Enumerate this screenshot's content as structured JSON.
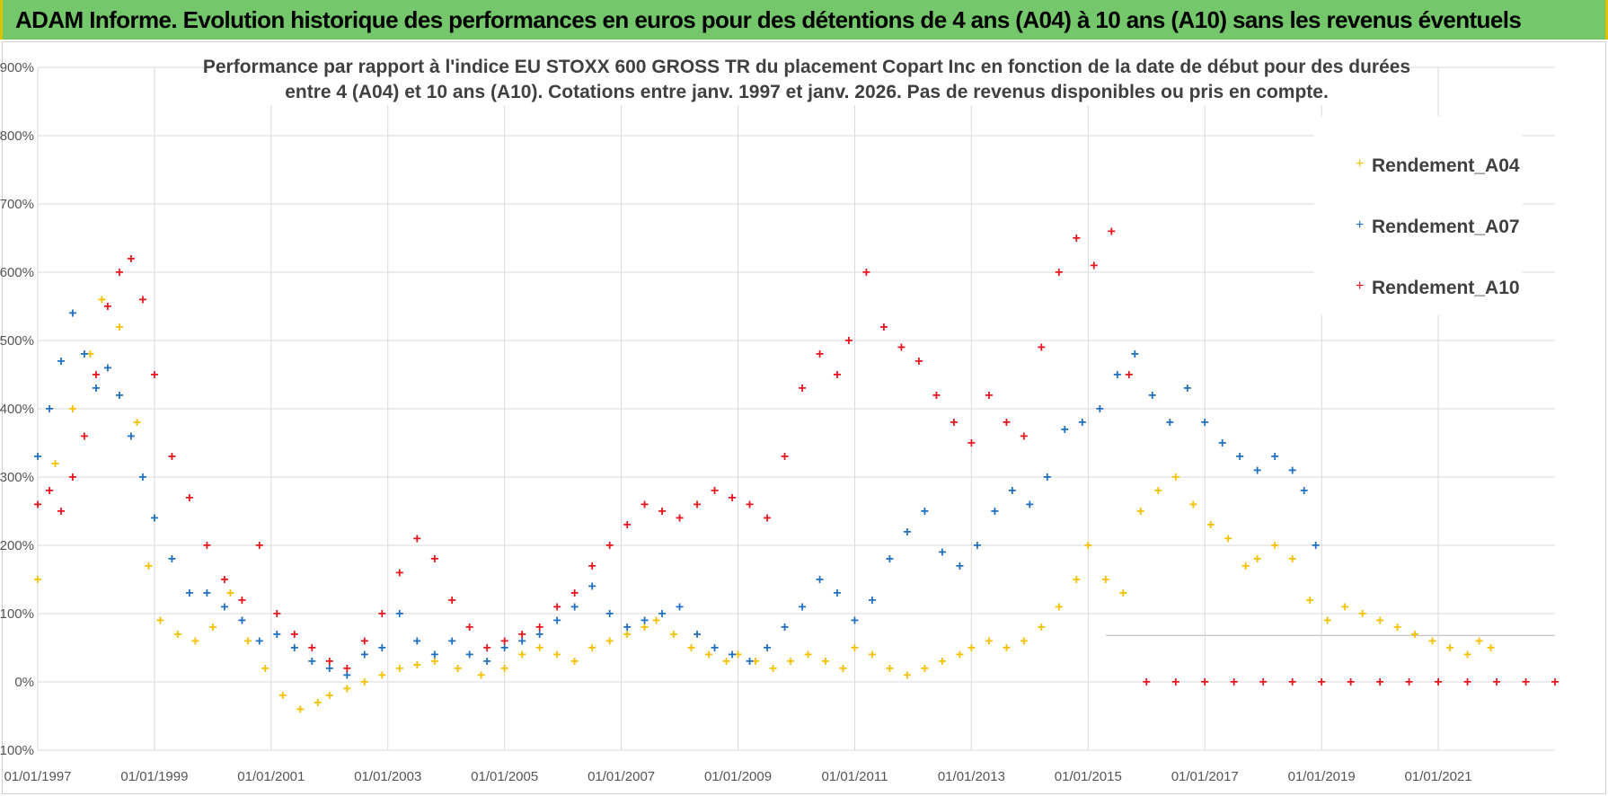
{
  "header": {
    "title": "ADAM Informe. Evolution historique des performances en euros pour des détentions de 4 ans (A04) à 10 ans (A10) sans les revenus éventuels"
  },
  "colors": {
    "banner": "#74c76a",
    "series_A04": "#f5c000",
    "series_A07": "#1f6fc0",
    "series_A10": "#e8141c"
  },
  "chart_data": {
    "type": "scatter",
    "title_lines": [
      "Performance par rapport à l'indice EU STOXX 600 GROSS TR  du placement Copart Inc en fonction de la date de début pour des durées",
      "entre 4 (A04) et 10 ans (A10).  Cotations entre janv. 1997 et janv. 2026. Pas de revenus disponibles ou pris en compte."
    ],
    "xlabel": "",
    "ylabel": "",
    "x_range": [
      1997.0,
      2023.0
    ],
    "ylim": [
      -100,
      900
    ],
    "y_ticks": [
      "- 100%",
      "0%",
      "100%",
      "200%",
      "300%",
      "400%",
      "500%",
      "600%",
      "700%",
      "800%",
      "900%"
    ],
    "x_ticks": [
      "01/01/1997",
      "01/01/1999",
      "01/01/2001",
      "01/01/2003",
      "01/01/2005",
      "01/01/2007",
      "01/01/2009",
      "01/01/2011",
      "01/01/2013",
      "01/01/2015",
      "01/01/2017",
      "01/01/2019",
      "01/01/2021"
    ],
    "legend_position": "top-right",
    "series": [
      {
        "name": "Rendement_A04",
        "color": "#f5c000",
        "x": [
          1997.0,
          1997.3,
          1997.6,
          1997.9,
          1998.1,
          1998.4,
          1998.7,
          1998.9,
          1999.1,
          1999.4,
          1999.7,
          2000.0,
          2000.3,
          2000.6,
          2000.9,
          2001.2,
          2001.5,
          2001.8,
          2002.0,
          2002.3,
          2002.6,
          2002.9,
          2003.2,
          2003.5,
          2003.8,
          2004.2,
          2004.6,
          2005.0,
          2005.3,
          2005.6,
          2005.9,
          2006.2,
          2006.5,
          2006.8,
          2007.1,
          2007.4,
          2007.6,
          2007.9,
          2008.2,
          2008.5,
          2008.8,
          2009.0,
          2009.3,
          2009.6,
          2009.9,
          2010.2,
          2010.5,
          2010.8,
          2011.0,
          2011.3,
          2011.6,
          2011.9,
          2012.2,
          2012.5,
          2012.8,
          2013.0,
          2013.3,
          2013.6,
          2013.9,
          2014.2,
          2014.5,
          2014.8,
          2015.0,
          2015.3,
          2015.6,
          2015.9,
          2016.2,
          2016.5,
          2016.8,
          2017.1,
          2017.4,
          2017.7,
          2017.9,
          2018.2,
          2018.5,
          2018.8,
          2019.1,
          2019.4,
          2019.7,
          2020.0,
          2020.3,
          2020.6,
          2020.9,
          2021.2,
          2021.5,
          2021.7,
          2021.9
        ],
        "values": [
          150,
          320,
          400,
          480,
          560,
          520,
          380,
          170,
          90,
          70,
          60,
          80,
          130,
          60,
          20,
          -20,
          -40,
          -30,
          -20,
          -10,
          0,
          10,
          20,
          25,
          30,
          20,
          10,
          20,
          40,
          50,
          40,
          30,
          50,
          60,
          70,
          80,
          90,
          70,
          50,
          40,
          30,
          40,
          30,
          20,
          30,
          40,
          30,
          20,
          50,
          40,
          20,
          10,
          20,
          30,
          40,
          50,
          60,
          50,
          60,
          80,
          110,
          150,
          200,
          150,
          130,
          250,
          280,
          300,
          260,
          230,
          210,
          170,
          180,
          200,
          180,
          120,
          90,
          110,
          100,
          90,
          80,
          70,
          60,
          50,
          40,
          60,
          50
        ]
      },
      {
        "name": "Rendement_A07",
        "color": "#1f6fc0",
        "x": [
          1997.0,
          1997.2,
          1997.4,
          1997.6,
          1997.8,
          1998.0,
          1998.2,
          1998.4,
          1998.6,
          1998.8,
          1999.0,
          1999.3,
          1999.6,
          1999.9,
          2000.2,
          2000.5,
          2000.8,
          2001.1,
          2001.4,
          2001.7,
          2002.0,
          2002.3,
          2002.6,
          2002.9,
          2003.2,
          2003.5,
          2003.8,
          2004.1,
          2004.4,
          2004.7,
          2005.0,
          2005.3,
          2005.6,
          2005.9,
          2006.2,
          2006.5,
          2006.8,
          2007.1,
          2007.4,
          2007.7,
          2008.0,
          2008.3,
          2008.6,
          2008.9,
          2009.2,
          2009.5,
          2009.8,
          2010.1,
          2010.4,
          2010.7,
          2011.0,
          2011.3,
          2011.6,
          2011.9,
          2012.2,
          2012.5,
          2012.8,
          2013.1,
          2013.4,
          2013.7,
          2014.0,
          2014.3,
          2014.6,
          2014.9,
          2015.2,
          2015.5,
          2015.8,
          2016.1,
          2016.4,
          2016.7,
          2017.0,
          2017.3,
          2017.6,
          2017.9,
          2018.2,
          2018.5,
          2018.7,
          2018.9
        ],
        "values": [
          330,
          400,
          470,
          540,
          480,
          430,
          460,
          420,
          360,
          300,
          240,
          180,
          130,
          130,
          110,
          90,
          60,
          70,
          50,
          30,
          20,
          10,
          40,
          50,
          100,
          60,
          40,
          60,
          40,
          30,
          50,
          60,
          70,
          90,
          110,
          140,
          100,
          80,
          90,
          100,
          110,
          70,
          50,
          40,
          30,
          50,
          80,
          110,
          150,
          130,
          90,
          120,
          180,
          220,
          250,
          190,
          170,
          200,
          250,
          280,
          260,
          300,
          370,
          380,
          400,
          450,
          480,
          420,
          380,
          430,
          380,
          350,
          330,
          310,
          330,
          310,
          280,
          200
        ]
      },
      {
        "name": "Rendement_A10",
        "color": "#e8141c",
        "x": [
          1997.0,
          1997.2,
          1997.4,
          1997.6,
          1997.8,
          1998.0,
          1998.2,
          1998.4,
          1998.6,
          1998.8,
          1999.0,
          1999.3,
          1999.6,
          1999.9,
          2000.2,
          2000.5,
          2000.8,
          2001.1,
          2001.4,
          2001.7,
          2002.0,
          2002.3,
          2002.6,
          2002.9,
          2003.2,
          2003.5,
          2003.8,
          2004.1,
          2004.4,
          2004.7,
          2005.0,
          2005.3,
          2005.6,
          2005.9,
          2006.2,
          2006.5,
          2006.8,
          2007.1,
          2007.4,
          2007.7,
          2008.0,
          2008.3,
          2008.6,
          2008.9,
          2009.2,
          2009.5,
          2009.8,
          2010.1,
          2010.4,
          2010.7,
          2010.9,
          2011.2,
          2011.5,
          2011.8,
          2012.1,
          2012.4,
          2012.7,
          2013.0,
          2013.3,
          2013.6,
          2013.9,
          2014.2,
          2014.5,
          2014.8,
          2015.1,
          2015.4,
          2015.7
        ],
        "values": [
          260,
          280,
          250,
          300,
          360,
          450,
          550,
          600,
          620,
          560,
          450,
          330,
          270,
          200,
          150,
          120,
          200,
          100,
          70,
          50,
          30,
          20,
          60,
          100,
          160,
          210,
          180,
          120,
          80,
          50,
          60,
          70,
          80,
          110,
          130,
          170,
          200,
          230,
          260,
          250,
          240,
          260,
          280,
          270,
          260,
          240,
          330,
          430,
          480,
          450,
          500,
          600,
          520,
          490,
          470,
          420,
          380,
          350,
          420,
          380,
          360,
          490,
          600,
          650,
          610,
          660,
          450
        ]
      },
      {
        "name": "Rendement_A10",
        "color": "#e8141c",
        "x": [
          2016.0,
          2016.5,
          2017.0,
          2017.5,
          2018.0,
          2018.5,
          2019.0,
          2019.5,
          2020.0,
          2020.5,
          2021.0,
          2021.5,
          2022.0,
          2022.5,
          2023.0
        ],
        "values": [
          0,
          0,
          0,
          0,
          0,
          0,
          0,
          0,
          0,
          0,
          0,
          0,
          0,
          0,
          0
        ]
      }
    ],
    "legend": [
      {
        "label": "Rendement_A04",
        "color": "#f5c000"
      },
      {
        "label": "Rendement_A07",
        "color": "#1f6fc0"
      },
      {
        "label": "Rendement_A10",
        "color": "#e8141c"
      }
    ]
  }
}
